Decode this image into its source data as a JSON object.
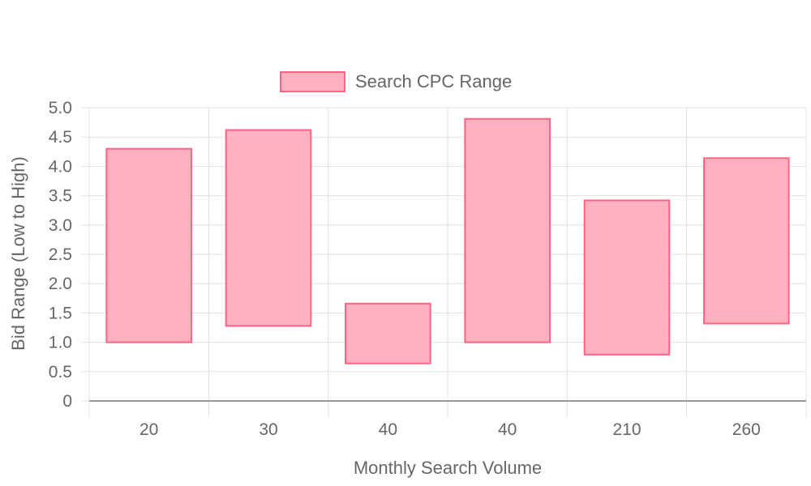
{
  "chart_data": {
    "type": "floating-bar",
    "categories": [
      "20",
      "30",
      "40",
      "40",
      "210",
      "260"
    ],
    "series": [
      {
        "name": "Search CPC Range",
        "ranges": [
          [
            1.0,
            4.3
          ],
          [
            1.28,
            4.62
          ],
          [
            0.64,
            1.66
          ],
          [
            1.0,
            4.81
          ],
          [
            0.79,
            3.42
          ],
          [
            1.32,
            4.14
          ]
        ],
        "color": "#ffb1c1",
        "border_color": "#ff6384"
      }
    ],
    "xlabel": "Monthly Search Volume",
    "ylabel": "Bid Range (Low to High)",
    "ylim": [
      0,
      5.0
    ],
    "yticks": [
      "0",
      "0.5",
      "1.0",
      "1.5",
      "2.0",
      "2.5",
      "3.0",
      "3.5",
      "4.0",
      "4.5",
      "5.0"
    ],
    "grid": true,
    "legend_position": "top-center"
  }
}
